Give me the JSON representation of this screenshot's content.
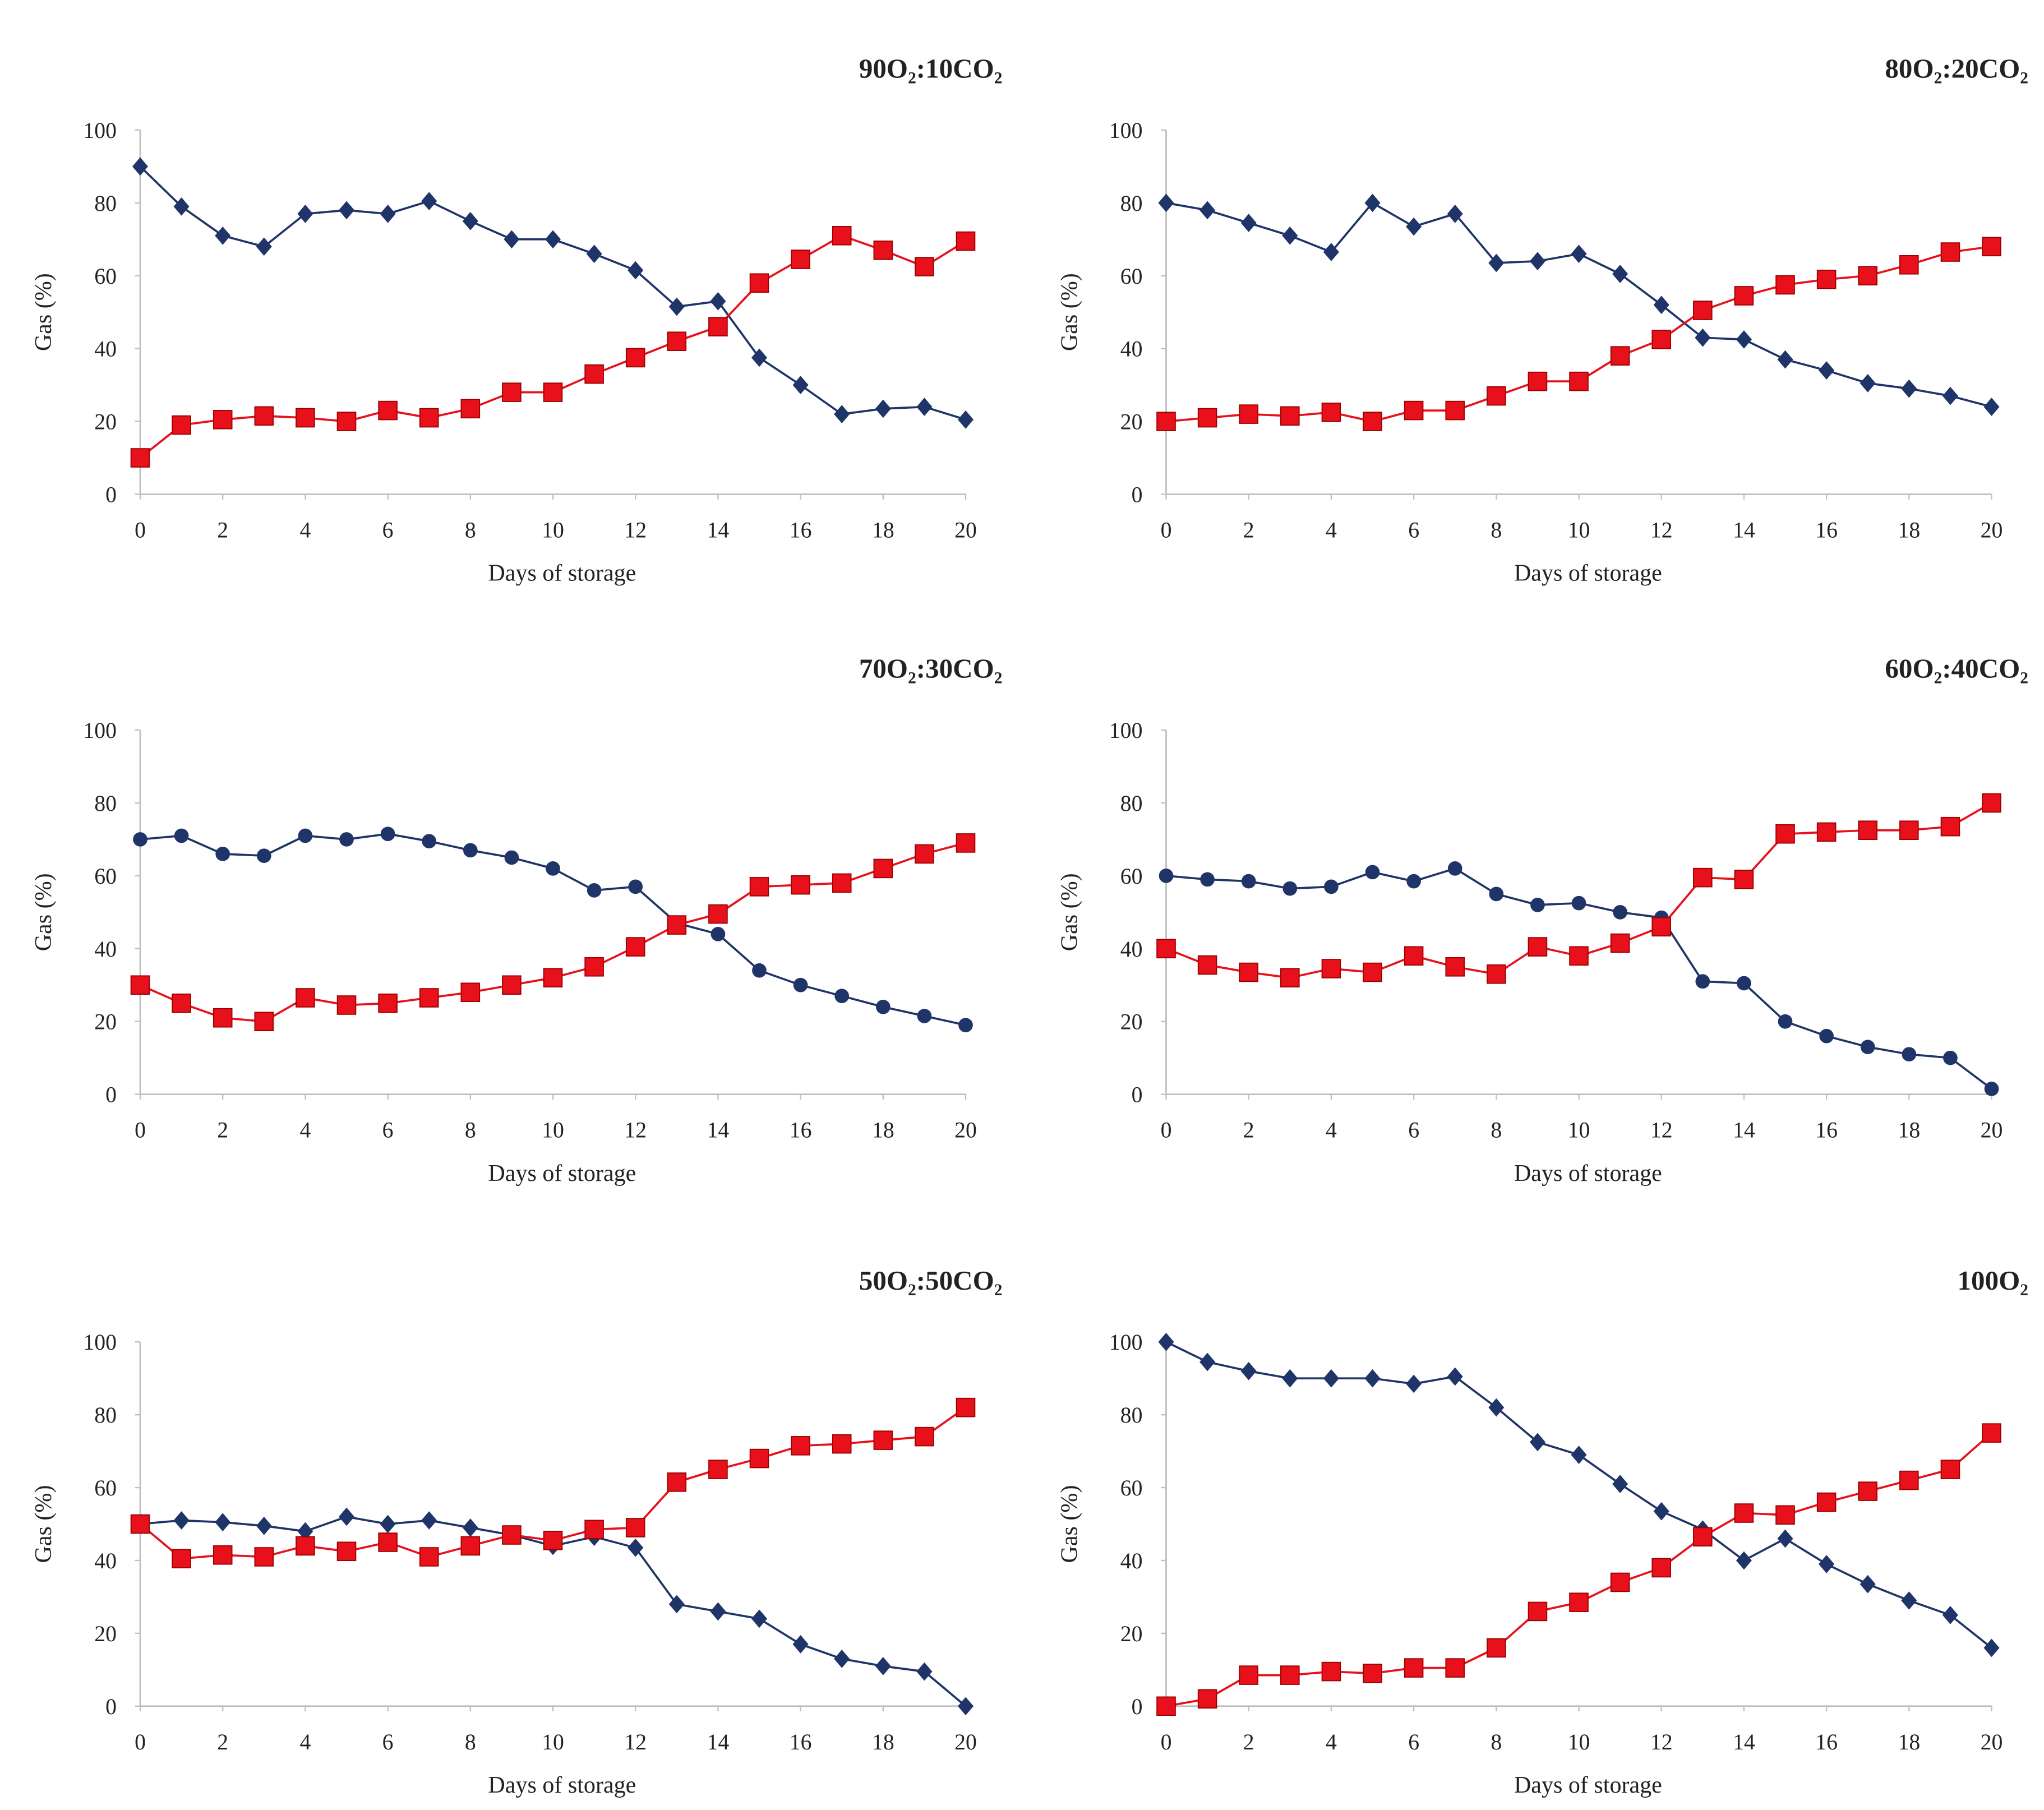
{
  "chart_data": [
    {
      "type": "line",
      "title": "90O₂:10CO₂",
      "x_label": "Days of storage",
      "y_label": "Gas (%)",
      "x": [
        0,
        1,
        2,
        3,
        4,
        5,
        6,
        7,
        8,
        9,
        10,
        11,
        12,
        13,
        14,
        15,
        16,
        17,
        18,
        19,
        20
      ],
      "xlim": [
        0,
        20
      ],
      "xticks": [
        0,
        2,
        4,
        6,
        8,
        10,
        12,
        14,
        16,
        18,
        20
      ],
      "ylim": [
        0,
        100
      ],
      "yticks": [
        0,
        20,
        40,
        60,
        80,
        100
      ],
      "series": [
        {
          "color": "#1f3468",
          "marker": "diamond",
          "values": [
            90,
            79,
            71,
            68,
            77,
            78,
            77,
            80.5,
            75,
            70,
            70,
            66,
            61.5,
            51.5,
            53,
            37.5,
            30,
            22,
            23.5,
            24,
            20.5
          ]
        },
        {
          "color": "#e8101a",
          "marker": "square",
          "values": [
            10,
            19,
            20.5,
            21.5,
            21,
            20,
            23,
            21,
            23.5,
            28,
            28,
            33,
            37.5,
            42,
            46,
            58,
            64.5,
            71,
            67,
            62.5,
            69.5
          ]
        }
      ]
    },
    {
      "type": "line",
      "title": "80O₂:20CO₂",
      "x_label": "Days of storage",
      "y_label": "Gas (%)",
      "x": [
        0,
        1,
        2,
        3,
        4,
        5,
        6,
        7,
        8,
        9,
        10,
        11,
        12,
        13,
        14,
        15,
        16,
        17,
        18,
        19,
        20
      ],
      "xlim": [
        0,
        20
      ],
      "xticks": [
        0,
        2,
        4,
        6,
        8,
        10,
        12,
        14,
        16,
        18,
        20
      ],
      "ylim": [
        0,
        100
      ],
      "yticks": [
        0,
        20,
        40,
        60,
        80,
        100
      ],
      "series": [
        {
          "color": "#1f3468",
          "marker": "diamond",
          "values": [
            80,
            78,
            74.5,
            71,
            66.5,
            80,
            73.5,
            77,
            63.5,
            64,
            66,
            60.5,
            52,
            43,
            42.5,
            37,
            34,
            30.5,
            29,
            27,
            24
          ]
        },
        {
          "color": "#e8101a",
          "marker": "square",
          "values": [
            20,
            21,
            22,
            21.5,
            22.5,
            20,
            23,
            23,
            27,
            31,
            31,
            38,
            42.5,
            50.5,
            54.5,
            57.5,
            59,
            60,
            63,
            66.5,
            68
          ]
        }
      ]
    },
    {
      "type": "line",
      "title": "70O₂:30CO₂",
      "x_label": "Days of storage",
      "y_label": "Gas (%)",
      "x": [
        0,
        1,
        2,
        3,
        4,
        5,
        6,
        7,
        8,
        9,
        10,
        11,
        12,
        13,
        14,
        15,
        16,
        17,
        18,
        19,
        20
      ],
      "xlim": [
        0,
        20
      ],
      "xticks": [
        0,
        2,
        4,
        6,
        8,
        10,
        12,
        14,
        16,
        18,
        20
      ],
      "ylim": [
        0,
        100
      ],
      "yticks": [
        0,
        20,
        40,
        60,
        80,
        100
      ],
      "series": [
        {
          "color": "#1f3468",
          "marker": "circle",
          "values": [
            70,
            71,
            66,
            65.5,
            71,
            70,
            71.5,
            69.5,
            67,
            65,
            62,
            56,
            57,
            47,
            44,
            34,
            30,
            27,
            24,
            21.5,
            19
          ]
        },
        {
          "color": "#e8101a",
          "marker": "square",
          "values": [
            30,
            25,
            21,
            20,
            26.5,
            24.5,
            25,
            26.5,
            28,
            30,
            32,
            35,
            40.5,
            46.5,
            49.5,
            57,
            57.5,
            58,
            62,
            66,
            69
          ]
        }
      ]
    },
    {
      "type": "line",
      "title": "60O₂:40CO₂",
      "x_label": "Days of storage",
      "y_label": "Gas (%)",
      "x": [
        0,
        1,
        2,
        3,
        4,
        5,
        6,
        7,
        8,
        9,
        10,
        11,
        12,
        13,
        14,
        15,
        16,
        17,
        18,
        19,
        20
      ],
      "xlim": [
        0,
        20
      ],
      "xticks": [
        0,
        2,
        4,
        6,
        8,
        10,
        12,
        14,
        16,
        18,
        20
      ],
      "ylim": [
        0,
        100
      ],
      "yticks": [
        0,
        20,
        40,
        60,
        80,
        100
      ],
      "series": [
        {
          "color": "#1f3468",
          "marker": "circle",
          "values": [
            60,
            59,
            58.5,
            56.5,
            57,
            61,
            58.5,
            62,
            55,
            52,
            52.5,
            50,
            48.5,
            31,
            30.5,
            20,
            16,
            13,
            11,
            10,
            1.5
          ]
        },
        {
          "color": "#e8101a",
          "marker": "square",
          "values": [
            40,
            35.5,
            33.5,
            32,
            34.5,
            33.5,
            38,
            35,
            33,
            40.5,
            38,
            41.5,
            46,
            59.5,
            59,
            71.5,
            72,
            72.5,
            72.5,
            73.5,
            80
          ]
        }
      ]
    },
    {
      "type": "line",
      "title": "50O₂:50CO₂",
      "x_label": "Days of storage",
      "y_label": "Gas (%)",
      "x": [
        0,
        1,
        2,
        3,
        4,
        5,
        6,
        7,
        8,
        9,
        10,
        11,
        12,
        13,
        14,
        15,
        16,
        17,
        18,
        19,
        20
      ],
      "xlim": [
        0,
        20
      ],
      "xticks": [
        0,
        2,
        4,
        6,
        8,
        10,
        12,
        14,
        16,
        18,
        20
      ],
      "ylim": [
        0,
        100
      ],
      "yticks": [
        0,
        20,
        40,
        60,
        80,
        100
      ],
      "series": [
        {
          "color": "#1f3468",
          "marker": "diamond",
          "values": [
            50,
            51,
            50.5,
            49.5,
            48,
            52,
            50,
            51,
            49,
            47,
            44,
            46.5,
            43.5,
            28,
            26,
            24,
            17,
            13,
            11,
            9.5,
            0
          ]
        },
        {
          "color": "#e8101a",
          "marker": "square",
          "values": [
            50,
            40.5,
            41.5,
            41,
            44,
            42.5,
            45,
            41,
            44,
            47,
            45.5,
            48.5,
            49,
            61.5,
            65,
            68,
            71.5,
            72,
            73,
            74,
            82
          ]
        }
      ]
    },
    {
      "type": "line",
      "title": "100O₂",
      "x_label": "Days of storage",
      "y_label": "Gas (%)",
      "x": [
        0,
        1,
        2,
        3,
        4,
        5,
        6,
        7,
        8,
        9,
        10,
        11,
        12,
        13,
        14,
        15,
        16,
        17,
        18,
        19,
        20
      ],
      "xlim": [
        0,
        20
      ],
      "xticks": [
        0,
        2,
        4,
        6,
        8,
        10,
        12,
        14,
        16,
        18,
        20
      ],
      "ylim": [
        0,
        100
      ],
      "yticks": [
        0,
        20,
        40,
        60,
        80,
        100
      ],
      "series": [
        {
          "color": "#1f3468",
          "marker": "diamond",
          "values": [
            100,
            94.5,
            92,
            90,
            90,
            90,
            88.5,
            90.5,
            82,
            72.5,
            69,
            61,
            53.5,
            48.5,
            40,
            46,
            39,
            33.5,
            29,
            25,
            16
          ]
        },
        {
          "color": "#e8101a",
          "marker": "square",
          "values": [
            0,
            2,
            8.5,
            8.5,
            9.5,
            9,
            10.5,
            10.5,
            16,
            26,
            28.5,
            34,
            38,
            46.5,
            53,
            52.5,
            56,
            59,
            62,
            65,
            75
          ]
        }
      ]
    }
  ]
}
